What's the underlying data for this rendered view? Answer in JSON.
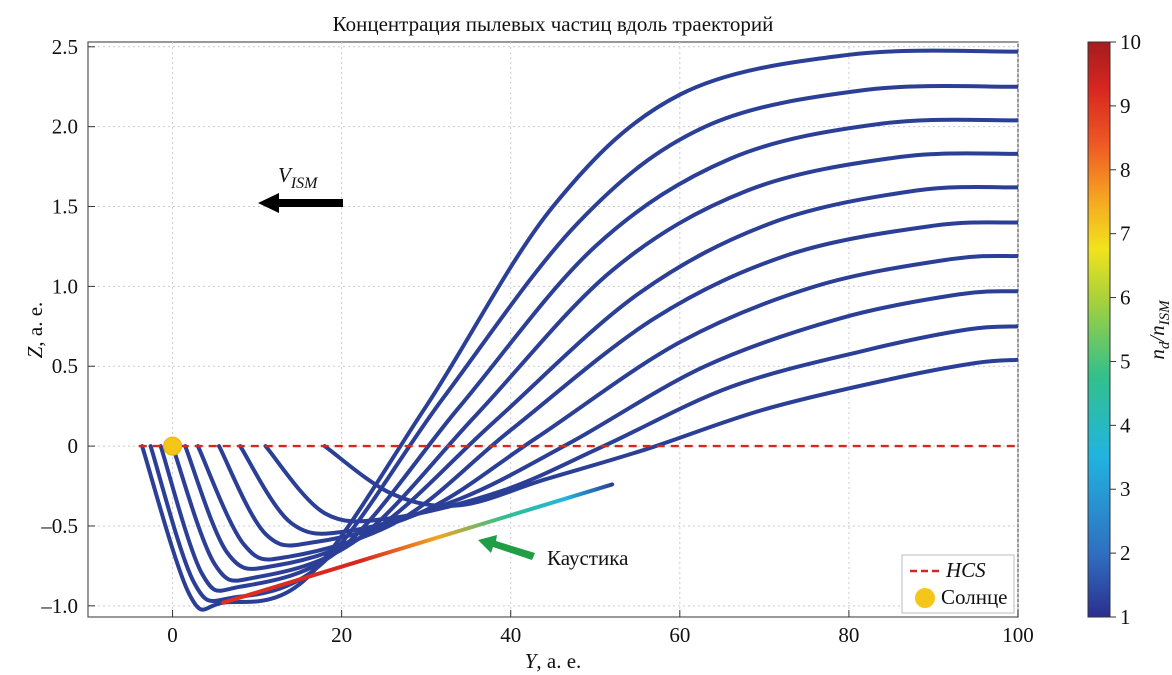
{
  "chart_data": {
    "type": "line",
    "title": "Концентрация пылевых частиц вдоль траекторий",
    "xlabel": {
      "var": "Y",
      "unit": ", а. е."
    },
    "ylabel": {
      "var": "Z",
      "unit": ", а. е."
    },
    "xlim": [
      -10,
      100
    ],
    "ylim": [
      -1.07,
      2.53
    ],
    "xticks": [
      0,
      20,
      40,
      60,
      80,
      100
    ],
    "yticks": [
      2.5,
      2.0,
      1.5,
      1.0,
      0.5,
      0,
      -0.5,
      -1.0
    ],
    "xtick_labels": [
      "0",
      "20",
      "40",
      "60",
      "80",
      "100"
    ],
    "ytick_labels": [
      "2.5",
      "2.0",
      "1.5",
      "1.0",
      "0.5",
      "0",
      "–0.5",
      "–1.0"
    ],
    "grid": true,
    "legend_position": "bottom-right",
    "legend": [
      {
        "label": "HCS",
        "style": "dashed",
        "color": "#d02a20"
      },
      {
        "label": "Солнце",
        "style": "marker",
        "color": "#f5c518"
      }
    ],
    "hcs_line": {
      "y": 0,
      "x": [
        -4,
        100
      ]
    },
    "sun": {
      "x": 0,
      "y": 0
    },
    "caustic": {
      "label": "Каустика",
      "color": "#1f9e46",
      "line": [
        [
          6,
          -0.98
        ],
        [
          52,
          -0.24
        ]
      ]
    },
    "vism": {
      "label_base": "V",
      "label_sub": "ISM"
    },
    "colorbar": {
      "label_main": "n",
      "label_sub1": "d",
      "label_sep": "/",
      "label_main2": "n",
      "label_sub2": "ISM",
      "min": 1,
      "max": 10,
      "ticks": [
        "1",
        "2",
        "3",
        "4",
        "5",
        "6",
        "7",
        "8",
        "9",
        "10"
      ],
      "colors": [
        "#2b2f8f",
        "#2f6fc0",
        "#21b4e0",
        "#33c08a",
        "#a6d13c",
        "#f2e31c",
        "#f6a321",
        "#ef5a24",
        "#d7261f",
        "#a51c1f"
      ]
    },
    "line_color": "#2b3f97",
    "series": [
      {
        "points": [
          [
            -3.6,
            0
          ],
          [
            2,
            -0.93
          ],
          [
            6,
            -0.98
          ],
          [
            16,
            -0.82
          ],
          [
            30,
            0.25
          ],
          [
            45,
            1.5
          ],
          [
            60,
            2.2
          ],
          [
            80,
            2.45
          ],
          [
            100,
            2.47
          ]
        ]
      },
      {
        "points": [
          [
            -2.6,
            0
          ],
          [
            2.5,
            -0.85
          ],
          [
            7,
            -0.95
          ],
          [
            18,
            -0.72
          ],
          [
            32,
            0.3
          ],
          [
            48,
            1.4
          ],
          [
            63,
            2.0
          ],
          [
            82,
            2.23
          ],
          [
            100,
            2.25
          ]
        ]
      },
      {
        "points": [
          [
            -1.4,
            0
          ],
          [
            3.5,
            -0.8
          ],
          [
            8,
            -0.88
          ],
          [
            20,
            -0.64
          ],
          [
            34,
            0.25
          ],
          [
            50,
            1.25
          ],
          [
            66,
            1.8
          ],
          [
            84,
            2.02
          ],
          [
            100,
            2.04
          ]
        ]
      },
      {
        "points": [
          [
            0,
            0
          ],
          [
            5,
            -0.74
          ],
          [
            10,
            -0.82
          ],
          [
            22,
            -0.58
          ],
          [
            36,
            0.2
          ],
          [
            52,
            1.1
          ],
          [
            68,
            1.6
          ],
          [
            86,
            1.81
          ],
          [
            100,
            1.83
          ]
        ]
      },
      {
        "points": [
          [
            1.5,
            0
          ],
          [
            6.5,
            -0.67
          ],
          [
            12,
            -0.75
          ],
          [
            24,
            -0.52
          ],
          [
            38,
            0.15
          ],
          [
            55,
            0.95
          ],
          [
            71,
            1.4
          ],
          [
            88,
            1.6
          ],
          [
            100,
            1.62
          ]
        ]
      },
      {
        "points": [
          [
            3,
            0
          ],
          [
            8.5,
            -0.62
          ],
          [
            14,
            -0.69
          ],
          [
            27,
            -0.46
          ],
          [
            40,
            0.1
          ],
          [
            57,
            0.8
          ],
          [
            73,
            1.2
          ],
          [
            90,
            1.38
          ],
          [
            100,
            1.4
          ]
        ]
      },
      {
        "points": [
          [
            5.5,
            0
          ],
          [
            11,
            -0.55
          ],
          [
            17,
            -0.6
          ],
          [
            30,
            -0.4
          ],
          [
            43,
            0.05
          ],
          [
            60,
            0.65
          ],
          [
            76,
            1.0
          ],
          [
            92,
            1.17
          ],
          [
            100,
            1.19
          ]
        ]
      },
      {
        "points": [
          [
            8,
            0
          ],
          [
            14,
            -0.48
          ],
          [
            21,
            -0.53
          ],
          [
            34,
            -0.33
          ],
          [
            47,
            0.02
          ],
          [
            63,
            0.5
          ],
          [
            79,
            0.8
          ],
          [
            93,
            0.95
          ],
          [
            100,
            0.97
          ]
        ]
      },
      {
        "points": [
          [
            11,
            0
          ],
          [
            18,
            -0.42
          ],
          [
            26,
            -0.45
          ],
          [
            39,
            -0.28
          ],
          [
            51,
            0.0
          ],
          [
            66,
            0.37
          ],
          [
            82,
            0.6
          ],
          [
            94,
            0.73
          ],
          [
            100,
            0.75
          ]
        ]
      },
      {
        "points": [
          [
            18,
            0
          ],
          [
            26,
            -0.3
          ],
          [
            34,
            -0.37
          ],
          [
            44,
            -0.21
          ],
          [
            56,
            -0.02
          ],
          [
            70,
            0.23
          ],
          [
            85,
            0.42
          ],
          [
            95,
            0.52
          ],
          [
            100,
            0.54
          ]
        ]
      }
    ]
  }
}
